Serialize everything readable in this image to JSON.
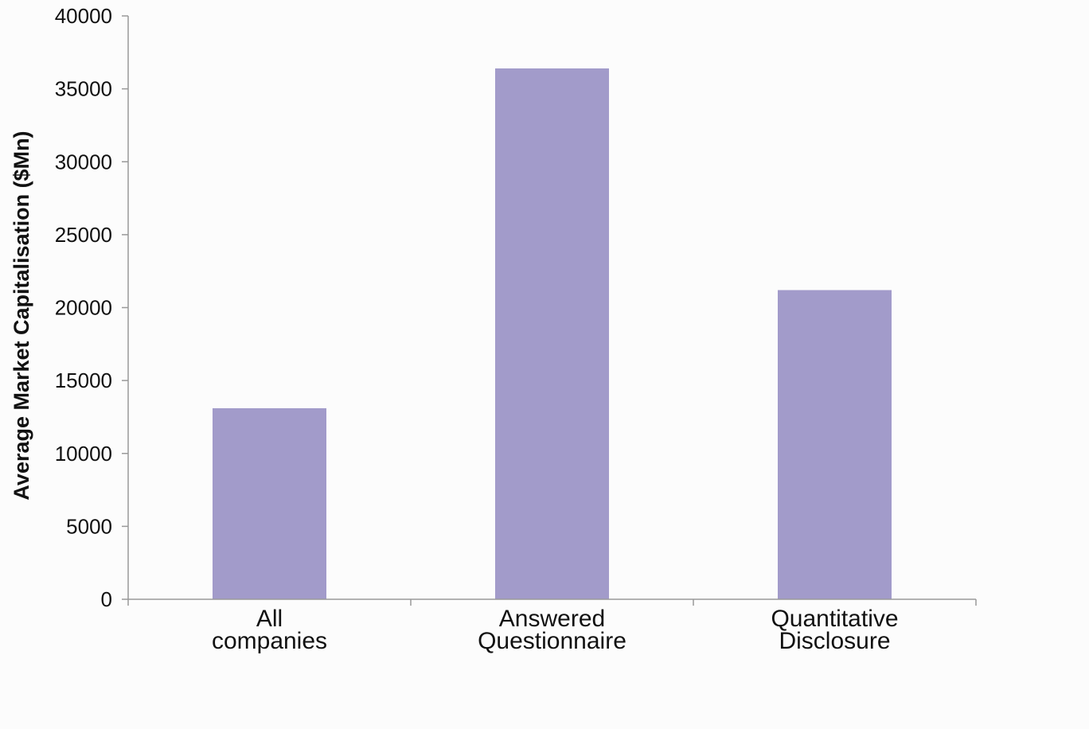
{
  "chart_data": {
    "type": "bar",
    "categories": [
      [
        "All",
        "companies"
      ],
      [
        "Answered",
        "Questionnaire"
      ],
      [
        "Quantitative",
        "Disclosure"
      ]
    ],
    "values": [
      13100,
      36400,
      21200
    ],
    "title": "",
    "xlabel": "",
    "ylabel": "Average Market Capitalisation ($Mn)",
    "ylim": [
      0,
      40000
    ],
    "yticks": [
      0,
      5000,
      10000,
      15000,
      20000,
      25000,
      30000,
      35000,
      40000
    ],
    "grid": false,
    "legend": "none",
    "colors": {
      "bar": "#a29bca",
      "axis": "#999999",
      "text": "#111111",
      "background": "#fcfcfc"
    }
  }
}
